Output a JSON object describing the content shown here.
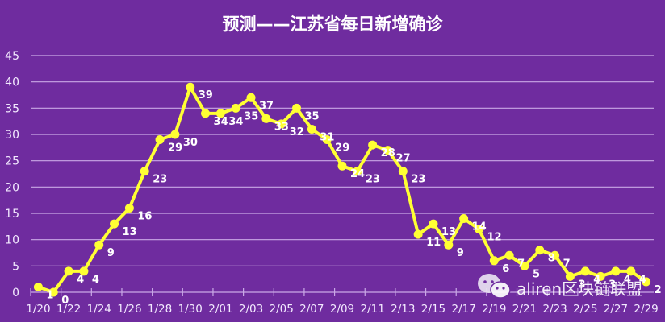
{
  "chart_data": {
    "type": "line",
    "title": "预测——江苏省每日新增确诊",
    "xlabel": "",
    "ylabel": "",
    "ylim": [
      0,
      45
    ],
    "yticks": [
      0,
      5,
      10,
      15,
      20,
      25,
      30,
      35,
      40,
      45
    ],
    "grid": true,
    "legend": null,
    "x": [
      "1/20",
      "1/21",
      "1/22",
      "1/23",
      "1/24",
      "1/25",
      "1/26",
      "1/27",
      "1/28",
      "1/29",
      "1/30",
      "1/31",
      "2/01",
      "2/02",
      "2/03",
      "2/04",
      "2/05",
      "2/06",
      "2/07",
      "2/08",
      "2/09",
      "2/10",
      "2/11",
      "2/12",
      "2/13",
      "2/14",
      "2/15",
      "2/16",
      "2/17",
      "2/18",
      "2/19",
      "2/20",
      "2/21",
      "2/22",
      "2/23",
      "2/24",
      "2/25",
      "2/26",
      "2/27",
      "2/28",
      "2/29"
    ],
    "xtick_labels": [
      "1/20",
      "1/22",
      "1/24",
      "1/26",
      "1/28",
      "1/30",
      "2/01",
      "2/03",
      "2/05",
      "2/07",
      "2/09",
      "2/11",
      "2/13",
      "2/15",
      "2/17",
      "2/19",
      "2/21",
      "2/23",
      "2/25",
      "2/27",
      "2/29"
    ],
    "series": [
      {
        "name": "江苏省每日新增确诊",
        "color": "#ffff33",
        "values": [
          1,
          0,
          4,
          4,
          9,
          13,
          16,
          23,
          29,
          30,
          39,
          34,
          34,
          35,
          37,
          33,
          32,
          35,
          31,
          29,
          24,
          23,
          28,
          27,
          23,
          11,
          13,
          9,
          14,
          12,
          6,
          7,
          5,
          8,
          7,
          3,
          4,
          3,
          4,
          4,
          2
        ]
      }
    ]
  },
  "colors": {
    "background": "#6f2c9f",
    "line": "#ffff33",
    "grid": "#c9a8e6",
    "text": "#ffffff"
  },
  "watermark": {
    "icon": "wechat-icon",
    "text": "aliren区块链联盟"
  }
}
